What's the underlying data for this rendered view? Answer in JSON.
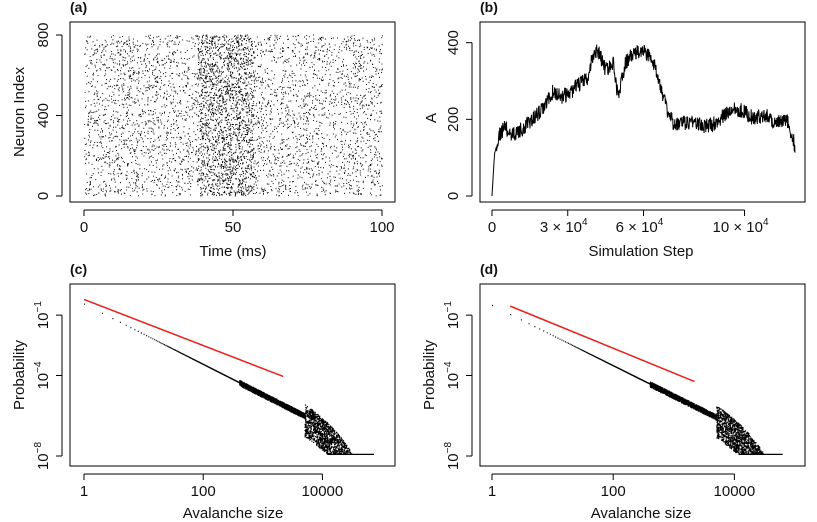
{
  "chart_data": [
    {
      "panel": "(a)",
      "type": "scatter",
      "subtype": "raster",
      "xlabel": "Time (ms)",
      "ylabel": "Neuron Index",
      "xlim": [
        0,
        100
      ],
      "ylim": [
        0,
        800
      ],
      "xticks": [
        0,
        50,
        100
      ],
      "xtick_labels": [
        "0",
        "50",
        "100"
      ],
      "yticks": [
        0,
        400,
        800
      ],
      "ytick_labels": [
        "0",
        "400",
        "800"
      ],
      "dense_bands_ms": [
        [
          38,
          57
        ]
      ]
    },
    {
      "panel": "(b)",
      "type": "line",
      "xlabel": "Simulation Step",
      "ylabel": "A",
      "xlim": [
        0,
        120000
      ],
      "ylim": [
        0,
        420
      ],
      "xticks": [
        0,
        30000,
        60000,
        100000
      ],
      "xtick_labels": [
        "0",
        "3 × 10",
        "6 × 10",
        "10 × 10"
      ],
      "xtick_exponent": "4",
      "yticks": [
        0,
        200,
        400
      ],
      "ytick_labels": [
        "0",
        "200",
        "400"
      ],
      "x": [
        0,
        1000,
        3000,
        5000,
        8000,
        12000,
        16000,
        20000,
        24000,
        28000,
        31000,
        34000,
        38000,
        40000,
        42000,
        45000,
        48000,
        50000,
        53000,
        56000,
        60000,
        63000,
        66000,
        69000,
        72000,
        76000,
        80000,
        84000,
        88000,
        92000,
        96000,
        100000,
        104000,
        108000,
        112000,
        117000,
        120000
      ],
      "y": [
        0,
        110,
        160,
        180,
        160,
        175,
        200,
        225,
        270,
        260,
        270,
        290,
        305,
        370,
        380,
        330,
        345,
        260,
        350,
        370,
        380,
        360,
        310,
        230,
        185,
        190,
        195,
        180,
        190,
        210,
        230,
        220,
        200,
        215,
        190,
        195,
        130
      ]
    },
    {
      "panel": "(c)",
      "type": "scatter",
      "xscale": "log",
      "yscale": "log",
      "xlabel": "Avalanche size",
      "ylabel": "Probability",
      "xlim": [
        1,
        100000
      ],
      "ylim": [
        1e-08,
        1
      ],
      "xticks": [
        1,
        100,
        10000
      ],
      "xtick_labels": [
        "1",
        "100",
        "10000"
      ],
      "yticks": [
        0.1,
        0.0001,
        1e-08
      ],
      "ytick_labels": [
        "10",
        "10",
        "10"
      ],
      "ytick_exponents": [
        "−1",
        "−4",
        "−8"
      ],
      "power_law_fit": {
        "x": [
          1,
          2200
        ],
        "y": [
          0.6,
          9e-05
        ],
        "color": "#e8201c"
      },
      "empirical_slope": -1.5,
      "empirical_tail_cutoff": 5000,
      "empirical_max_size": 70000
    },
    {
      "panel": "(d)",
      "type": "scatter",
      "xscale": "log",
      "yscale": "log",
      "xlabel": "Avalanche size",
      "ylabel": "Probability",
      "xlim": [
        1,
        100000
      ],
      "ylim": [
        1e-08,
        1
      ],
      "xticks": [
        1,
        100,
        10000
      ],
      "xtick_labels": [
        "1",
        "100",
        "10000"
      ],
      "yticks": [
        0.1,
        0.0001,
        1e-08
      ],
      "ytick_labels": [
        "10",
        "10",
        "10"
      ],
      "ytick_exponents": [
        "−1",
        "−4",
        "−8"
      ],
      "power_law_fit": {
        "x": [
          2,
          2200
        ],
        "y": [
          0.28,
          5e-05
        ],
        "color": "#e8201c"
      },
      "empirical_slope": -1.5,
      "empirical_tail_cutoff": 5000,
      "empirical_max_size": 60000
    }
  ]
}
